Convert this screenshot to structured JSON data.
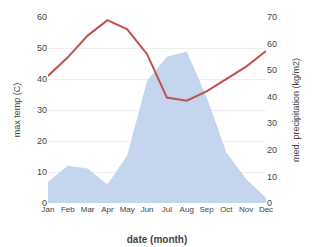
{
  "chart_data": {
    "type": "line",
    "xlabel": "date (month)",
    "ylabel": "max temp (C)",
    "y2label": "med. precipitation (kg/m2)",
    "categories": [
      "Jan",
      "Feb",
      "Mar",
      "Apr",
      "May",
      "Jun",
      "Jul",
      "Aug",
      "Sep",
      "Oct",
      "Nov",
      "Dec"
    ],
    "series": [
      {
        "type": "line",
        "color": "#c0504d",
        "values": [
          41,
          47,
          54,
          59,
          56,
          48,
          34,
          33,
          36,
          40,
          44,
          49
        ]
      },
      {
        "type": "area",
        "color": "#c5d5ee",
        "axis": "y2",
        "values": [
          8,
          14,
          13,
          7,
          18,
          46,
          55,
          57,
          40,
          19,
          9,
          2
        ]
      }
    ],
    "ylim": [
      0,
      60
    ],
    "yticks": [
      0,
      10,
      20,
      30,
      40,
      50,
      60
    ],
    "y2lim": [
      0,
      70
    ],
    "y2ticks": [
      0,
      10,
      20,
      30,
      40,
      50,
      60,
      70
    ],
    "grid": true
  }
}
